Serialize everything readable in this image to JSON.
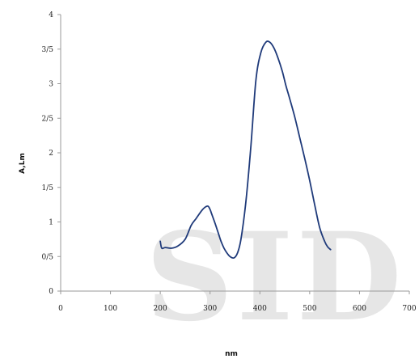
{
  "watermark": "SID",
  "chart_data": {
    "type": "line",
    "xlabel": "nm",
    "ylabel": "A,Lm",
    "xlim": [
      0,
      700
    ],
    "ylim": [
      0,
      4
    ],
    "x_ticks": [
      0,
      100,
      200,
      300,
      400,
      500,
      600,
      700
    ],
    "x_tick_labels": [
      "0",
      "100",
      "200",
      "300",
      "400",
      "500",
      "600",
      "700"
    ],
    "y_ticks": [
      0,
      0.5,
      1,
      1.5,
      2,
      2.5,
      3,
      3.5,
      4
    ],
    "y_tick_labels": [
      "0",
      "0/5",
      "1",
      "1/5",
      "2",
      "2/5",
      "3",
      "3/5",
      "4"
    ],
    "grid": false,
    "series": [
      {
        "color": "#1f3a7a",
        "x": [
          200,
          203,
          210,
          222,
          235,
          250,
          262,
          272,
          285,
          295,
          300,
          303,
          310,
          316,
          322,
          328,
          334,
          340,
          348,
          355,
          362,
          372,
          382,
          392,
          402,
          412,
          420,
          428,
          436,
          445,
          452,
          460,
          470,
          480,
          490,
          500,
          510,
          520,
          530,
          536,
          542
        ],
        "y": [
          0.72,
          0.62,
          0.63,
          0.62,
          0.65,
          0.75,
          0.95,
          1.05,
          1.18,
          1.23,
          1.18,
          1.12,
          0.98,
          0.85,
          0.72,
          0.62,
          0.55,
          0.5,
          0.48,
          0.55,
          0.75,
          1.3,
          2.1,
          3.05,
          3.45,
          3.6,
          3.6,
          3.52,
          3.38,
          3.18,
          2.98,
          2.78,
          2.52,
          2.22,
          1.92,
          1.6,
          1.25,
          0.92,
          0.72,
          0.64,
          0.6
        ]
      }
    ]
  }
}
